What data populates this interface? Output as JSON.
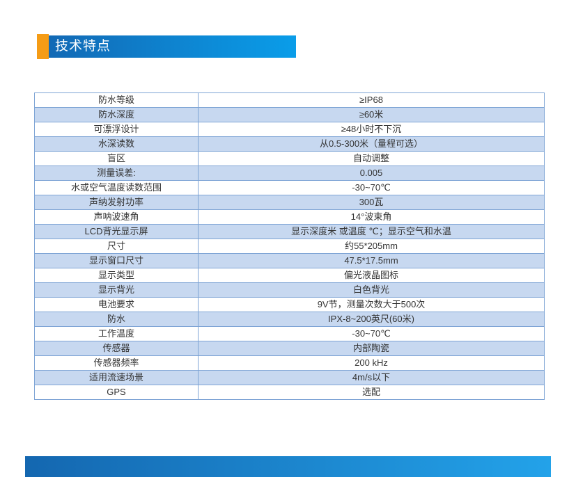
{
  "header": {
    "title": "技术特点"
  },
  "colors": {
    "accent_orange": "#F59C16",
    "header_gradient_start": "#1269B5",
    "header_gradient_end": "#0A9DE9",
    "table_border": "#7EA4D5",
    "zebra_row": "#C7D8F0",
    "text": "#333333",
    "footer_gradient_start": "#1467B0",
    "footer_gradient_end": "#23A2E9"
  },
  "table": {
    "rows": [
      {
        "label": "防水等级",
        "value": "≥IP68"
      },
      {
        "label": "防水深度",
        "value": "≥60米"
      },
      {
        "label": "可漂浮设计",
        "value": "≥48小时不下沉"
      },
      {
        "label": "水深读数",
        "value": "从0.5-300米（量程可选）"
      },
      {
        "label": "盲区",
        "value": "自动调整"
      },
      {
        "label": "测量误差:",
        "value": "0.005"
      },
      {
        "label": "水或空气温度读数范围",
        "value": "-30~70℃"
      },
      {
        "label": "声纳发射功率",
        "value": "300瓦"
      },
      {
        "label": "声呐波速角",
        "value": "14°波束角"
      },
      {
        "label": "LCD背光显示屏",
        "value": "显示深度米 或温度 ℃；显示空气和水温"
      },
      {
        "label": "尺寸",
        "value": "约55*205mm"
      },
      {
        "label": "显示窗口尺寸",
        "value": "47.5*17.5mm"
      },
      {
        "label": "显示类型",
        "value": "偏光液晶图标"
      },
      {
        "label": "显示背光",
        "value": "白色背光"
      },
      {
        "label": "电池要求",
        "value": "9V节，测量次数大于500次"
      },
      {
        "label": "防水",
        "value": "IPX-8~200英尺(60米)"
      },
      {
        "label": "工作温度",
        "value": "-30~70℃"
      },
      {
        "label": "传感器",
        "value": "内部陶瓷"
      },
      {
        "label": "传感器频率",
        "value": "200 kHz"
      },
      {
        "label": "适用流速场景",
        "value": "4m/s以下"
      },
      {
        "label": "GPS",
        "value": "选配"
      }
    ]
  }
}
